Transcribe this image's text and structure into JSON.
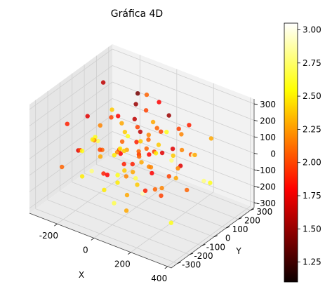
{
  "chart_data": {
    "type": "scatter",
    "title": "Gráfica 4D",
    "xlabel": "X",
    "ylabel": "Y",
    "zlabel": "",
    "x_ticks": [
      -200,
      0,
      200,
      400
    ],
    "y_ticks": [
      -300,
      -200,
      -100,
      0,
      100,
      200,
      300
    ],
    "z_ticks": [
      -300,
      -200,
      -100,
      0,
      100,
      200,
      300
    ],
    "xlim": [
      -350,
      420
    ],
    "ylim": [
      -350,
      330
    ],
    "zlim": [
      -330,
      330
    ],
    "colorbar": {
      "cmap": "hot",
      "min": 1.1,
      "max": 3.05,
      "ticks": [
        1.25,
        1.5,
        1.75,
        2.0,
        2.25,
        2.5,
        2.75,
        3.0
      ],
      "tick_labels": [
        "1.25",
        "1.50",
        "1.75",
        "2.00",
        "2.25",
        "2.50",
        "2.75",
        "3.00"
      ]
    },
    "points": [
      {
        "x": 5,
        "y": 10,
        "z": 5,
        "c": 2.1
      },
      {
        "x": -20,
        "y": 30,
        "z": 40,
        "c": 1.9
      },
      {
        "x": 40,
        "y": -20,
        "z": -30,
        "c": 2.3
      },
      {
        "x": -60,
        "y": -50,
        "z": 20,
        "c": 2.0
      },
      {
        "x": 80,
        "y": 60,
        "z": 50,
        "c": 2.4
      },
      {
        "x": -100,
        "y": 20,
        "z": -60,
        "c": 1.8
      },
      {
        "x": 120,
        "y": -80,
        "z": 10,
        "c": 2.2
      },
      {
        "x": -30,
        "y": -110,
        "z": -90,
        "c": 2.6
      },
      {
        "x": 60,
        "y": 120,
        "z": -40,
        "c": 1.7
      },
      {
        "x": -140,
        "y": 90,
        "z": 70,
        "c": 2.3
      },
      {
        "x": 150,
        "y": 40,
        "z": -100,
        "c": 2.0
      },
      {
        "x": 10,
        "y": -150,
        "z": 110,
        "c": 2.5
      },
      {
        "x": -80,
        "y": 140,
        "z": -120,
        "c": 1.9
      },
      {
        "x": 100,
        "y": -130,
        "z": 90,
        "c": 2.1
      },
      {
        "x": -170,
        "y": -60,
        "z": 30,
        "c": 2.7
      },
      {
        "x": 180,
        "y": 100,
        "z": 40,
        "c": 2.2
      },
      {
        "x": -50,
        "y": 60,
        "z": 150,
        "c": 1.6
      },
      {
        "x": 30,
        "y": -40,
        "z": -160,
        "c": 2.4
      },
      {
        "x": -200,
        "y": 20,
        "z": -80,
        "c": 2.1
      },
      {
        "x": 210,
        "y": -30,
        "z": 60,
        "c": 2.8
      },
      {
        "x": 0,
        "y": 200,
        "z": 20,
        "c": 2.0
      },
      {
        "x": -20,
        "y": -210,
        "z": -30,
        "c": 1.8
      },
      {
        "x": 70,
        "y": 30,
        "z": 200,
        "c": 2.3
      },
      {
        "x": -90,
        "y": -20,
        "z": -210,
        "c": 2.5
      },
      {
        "x": 130,
        "y": 150,
        "z": 120,
        "c": 2.0
      },
      {
        "x": -130,
        "y": -150,
        "z": 100,
        "c": 2.2
      },
      {
        "x": 160,
        "y": -170,
        "z": -70,
        "c": 1.9
      },
      {
        "x": -160,
        "y": 170,
        "z": -60,
        "c": 2.6
      },
      {
        "x": 240,
        "y": 50,
        "z": -150,
        "c": 2.1
      },
      {
        "x": -240,
        "y": -40,
        "z": 140,
        "c": 1.7
      },
      {
        "x": 40,
        "y": 240,
        "z": -130,
        "c": 2.4
      },
      {
        "x": -40,
        "y": -240,
        "z": 130,
        "c": 2.0
      },
      {
        "x": 20,
        "y": 20,
        "z": -250,
        "c": 2.9
      },
      {
        "x": -30,
        "y": 40,
        "z": 260,
        "c": 1.5
      },
      {
        "x": 280,
        "y": -100,
        "z": 20,
        "c": 2.3
      },
      {
        "x": -270,
        "y": 110,
        "z": -10,
        "c": 2.2
      },
      {
        "x": 100,
        "y": 280,
        "z": 60,
        "c": 1.9
      },
      {
        "x": -110,
        "y": -280,
        "z": -40,
        "c": 2.5
      },
      {
        "x": 320,
        "y": -200,
        "z": -180,
        "c": 2.6
      },
      {
        "x": -300,
        "y": 180,
        "z": 200,
        "c": 1.6
      },
      {
        "x": 200,
        "y": 250,
        "z": -220,
        "c": 2.8
      },
      {
        "x": -60,
        "y": 100,
        "z": 280,
        "c": 1.4
      },
      {
        "x": 250,
        "y": -260,
        "z": 160,
        "c": 2.2
      },
      {
        "x": -250,
        "y": 260,
        "z": -180,
        "c": 2.1
      },
      {
        "x": 0,
        "y": -80,
        "z": 60,
        "c": 2.3
      },
      {
        "x": 50,
        "y": 70,
        "z": -10,
        "c": 2.0
      },
      {
        "x": -70,
        "y": 10,
        "z": 90,
        "c": 2.4
      },
      {
        "x": 90,
        "y": -10,
        "z": -80,
        "c": 1.8
      },
      {
        "x": -10,
        "y": -70,
        "z": -110,
        "c": 2.2
      },
      {
        "x": 110,
        "y": 80,
        "z": 130,
        "c": 2.6
      },
      {
        "x": -120,
        "y": -90,
        "z": -130,
        "c": 1.9
      },
      {
        "x": 25,
        "y": 130,
        "z": 90,
        "c": 2.1
      },
      {
        "x": -35,
        "y": -130,
        "z": 40,
        "c": 2.5
      },
      {
        "x": 190,
        "y": 10,
        "z": 100,
        "c": 1.7
      },
      {
        "x": -190,
        "y": -10,
        "z": -100,
        "c": 2.3
      },
      {
        "x": 15,
        "y": -15,
        "z": 170,
        "c": 2.0
      },
      {
        "x": -15,
        "y": 15,
        "z": -170,
        "c": 2.7
      },
      {
        "x": 140,
        "y": -60,
        "z": -130,
        "c": 2.1
      },
      {
        "x": -140,
        "y": 60,
        "z": 130,
        "c": 1.8
      },
      {
        "x": 60,
        "y": -190,
        "z": 20,
        "c": 2.4
      },
      {
        "x": -60,
        "y": 190,
        "z": -20,
        "c": 2.2
      },
      {
        "x": 220,
        "y": 130,
        "z": 10,
        "c": 2.9
      },
      {
        "x": -220,
        "y": -130,
        "z": -10,
        "c": 2.0
      },
      {
        "x": 80,
        "y": -90,
        "z": 210,
        "c": 1.6
      },
      {
        "x": -80,
        "y": 90,
        "z": -200,
        "c": 2.3
      },
      {
        "x": 35,
        "y": 45,
        "z": 70,
        "c": 2.1
      },
      {
        "x": -45,
        "y": -35,
        "z": -70,
        "c": 1.9
      },
      {
        "x": 95,
        "y": 15,
        "z": 30,
        "c": 2.5
      },
      {
        "x": -95,
        "y": -15,
        "z": -30,
        "c": 2.2
      },
      {
        "x": 5,
        "y": 95,
        "z": -60,
        "c": 1.8
      },
      {
        "x": -5,
        "y": -95,
        "z": 60,
        "c": 2.4
      },
      {
        "x": 170,
        "y": 190,
        "z": -40,
        "c": 2.0
      },
      {
        "x": -170,
        "y": -190,
        "z": 40,
        "c": 2.6
      },
      {
        "x": 290,
        "y": 40,
        "z": 90,
        "c": 2.3
      },
      {
        "x": -290,
        "y": -40,
        "z": -90,
        "c": 1.7
      },
      {
        "x": 45,
        "y": 300,
        "z": -30,
        "c": 2.2
      },
      {
        "x": -45,
        "y": -300,
        "z": 30,
        "c": 2.8
      },
      {
        "x": 120,
        "y": 20,
        "z": -220,
        "c": 2.0
      },
      {
        "x": -120,
        "y": -20,
        "z": 220,
        "c": 2.4
      },
      {
        "x": 360,
        "y": 60,
        "z": -60,
        "c": 2.6
      },
      {
        "x": -330,
        "y": -70,
        "z": 70,
        "c": 1.9
      },
      {
        "x": 150,
        "y": -310,
        "z": -120,
        "c": 2.3
      },
      {
        "x": -150,
        "y": 310,
        "z": 120,
        "c": 2.1
      },
      {
        "x": 70,
        "y": 160,
        "z": 170,
        "c": 1.5
      },
      {
        "x": -70,
        "y": -160,
        "z": -170,
        "c": 2.5
      },
      {
        "x": 230,
        "y": -140,
        "z": -40,
        "c": 2.2
      },
      {
        "x": -230,
        "y": 140,
        "z": 40,
        "c": 2.0
      },
      {
        "x": 30,
        "y": -230,
        "z": -170,
        "c": 2.7
      },
      {
        "x": -30,
        "y": 230,
        "z": 170,
        "c": 1.8
      },
      {
        "x": 260,
        "y": 220,
        "z": 80,
        "c": 2.3
      },
      {
        "x": -260,
        "y": -220,
        "z": -80,
        "c": 2.1
      },
      {
        "x": 55,
        "y": -50,
        "z": 120,
        "c": 2.4
      },
      {
        "x": -55,
        "y": 50,
        "z": -120,
        "c": 1.9
      },
      {
        "x": 175,
        "y": 75,
        "z": -60,
        "c": 2.2
      },
      {
        "x": -175,
        "y": -75,
        "z": 60,
        "c": 2.6
      },
      {
        "x": 12,
        "y": 60,
        "z": 230,
        "c": 2.0
      },
      {
        "x": -12,
        "y": -60,
        "z": -230,
        "c": 2.3
      },
      {
        "x": 100,
        "y": 210,
        "z": -150,
        "c": 1.7
      },
      {
        "x": -100,
        "y": -210,
        "z": 150,
        "c": 2.5
      },
      {
        "x": 200,
        "y": -220,
        "z": 230,
        "c": 2.1
      }
    ]
  }
}
